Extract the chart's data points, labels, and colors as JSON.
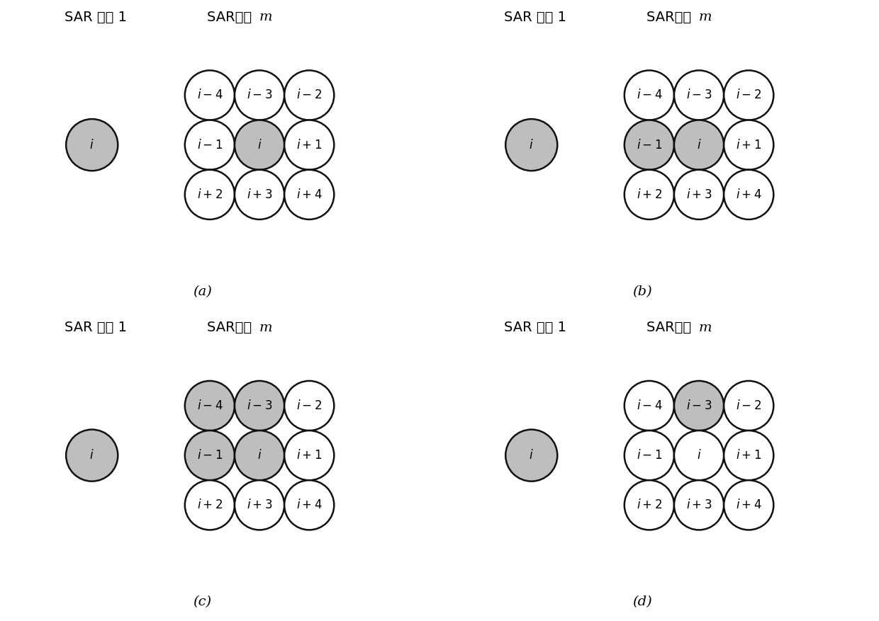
{
  "panels": [
    {
      "label": "(a)",
      "sar1_label": "SAR 图像 1",
      "sarm_label": "SAR图像 m",
      "left_circle_shaded": true,
      "grid_labels": [
        [
          "i-4",
          "i-3",
          "i-2"
        ],
        [
          "i-1",
          "i",
          "i+1"
        ],
        [
          "i+2",
          "i+3",
          "i+4"
        ]
      ],
      "grid_shaded": [
        [
          false,
          false,
          false
        ],
        [
          false,
          true,
          false
        ],
        [
          false,
          false,
          false
        ]
      ]
    },
    {
      "label": "(b)",
      "sar1_label": "SAR 图像 1",
      "sarm_label": "SAR图像 m",
      "left_circle_shaded": true,
      "grid_labels": [
        [
          "i-4",
          "i-3",
          "i-2"
        ],
        [
          "i-1",
          "i",
          "i+1"
        ],
        [
          "i+2",
          "i+3",
          "i+4"
        ]
      ],
      "grid_shaded": [
        [
          false,
          false,
          false
        ],
        [
          true,
          true,
          false
        ],
        [
          false,
          false,
          false
        ]
      ]
    },
    {
      "label": "(c)",
      "sar1_label": "SAR 图像 1",
      "sarm_label": "SAR图像 m",
      "left_circle_shaded": true,
      "grid_labels": [
        [
          "i-4",
          "i-3",
          "i-2"
        ],
        [
          "i-1",
          "i",
          "i+1"
        ],
        [
          "i+2",
          "i+3",
          "i+4"
        ]
      ],
      "grid_shaded": [
        [
          true,
          true,
          false
        ],
        [
          true,
          true,
          false
        ],
        [
          false,
          false,
          false
        ]
      ]
    },
    {
      "label": "(d)",
      "sar1_label": "SAR 图像 1",
      "sarm_label": "SAR图像 m",
      "left_circle_shaded": true,
      "grid_labels": [
        [
          "i-4",
          "i-3",
          "i-2"
        ],
        [
          "i-1",
          "i",
          "i+1"
        ],
        [
          "i+2",
          "i+3",
          "i+4"
        ]
      ],
      "grid_shaded": [
        [
          false,
          true,
          false
        ],
        [
          false,
          false,
          false
        ],
        [
          false,
          false,
          false
        ]
      ]
    }
  ],
  "white_color": "#ffffff",
  "shaded_color": "#bebebe",
  "edge_color": "#111111",
  "background_color": "#ffffff",
  "circle_lw": 1.8,
  "font_size_label": 14,
  "font_size_grid": 12,
  "font_size_caption": 14
}
